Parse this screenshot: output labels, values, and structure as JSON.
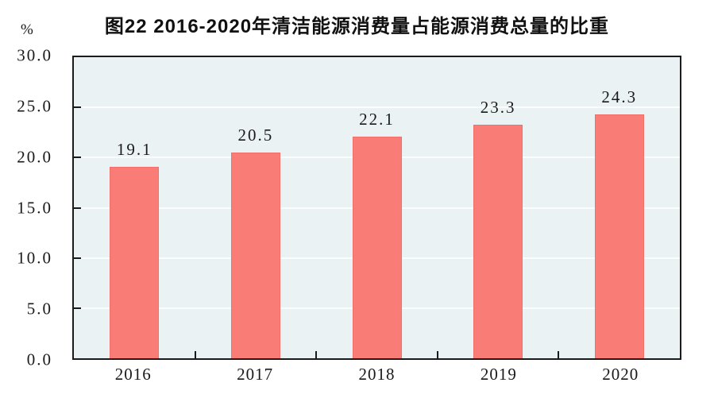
{
  "chart_data": {
    "type": "bar",
    "title": "图22  2016-2020年清洁能源消费量占能源消费总量的比重",
    "unit_label": "%",
    "categories": [
      "2016",
      "2017",
      "2018",
      "2019",
      "2020"
    ],
    "values": [
      19.1,
      20.5,
      22.1,
      23.3,
      24.3
    ],
    "data_labels": [
      "19.1",
      "20.5",
      "22.1",
      "23.3",
      "24.3"
    ],
    "xlabel": "",
    "ylabel": "%",
    "ylim": [
      0,
      30
    ],
    "ytick_step": 5,
    "ytick_labels": [
      "0.0",
      "5.0",
      "10.0",
      "15.0",
      "20.0",
      "25.0",
      "30.0"
    ],
    "grid": true,
    "legend": null,
    "colors": {
      "bar_fill": "#fa7c77",
      "bar_edge": "#f0706b",
      "plot_background": "#eaf2f4",
      "gridline": "#fbfdfd",
      "axis": "#1b1b1b",
      "text": "#1a1a1a"
    }
  }
}
